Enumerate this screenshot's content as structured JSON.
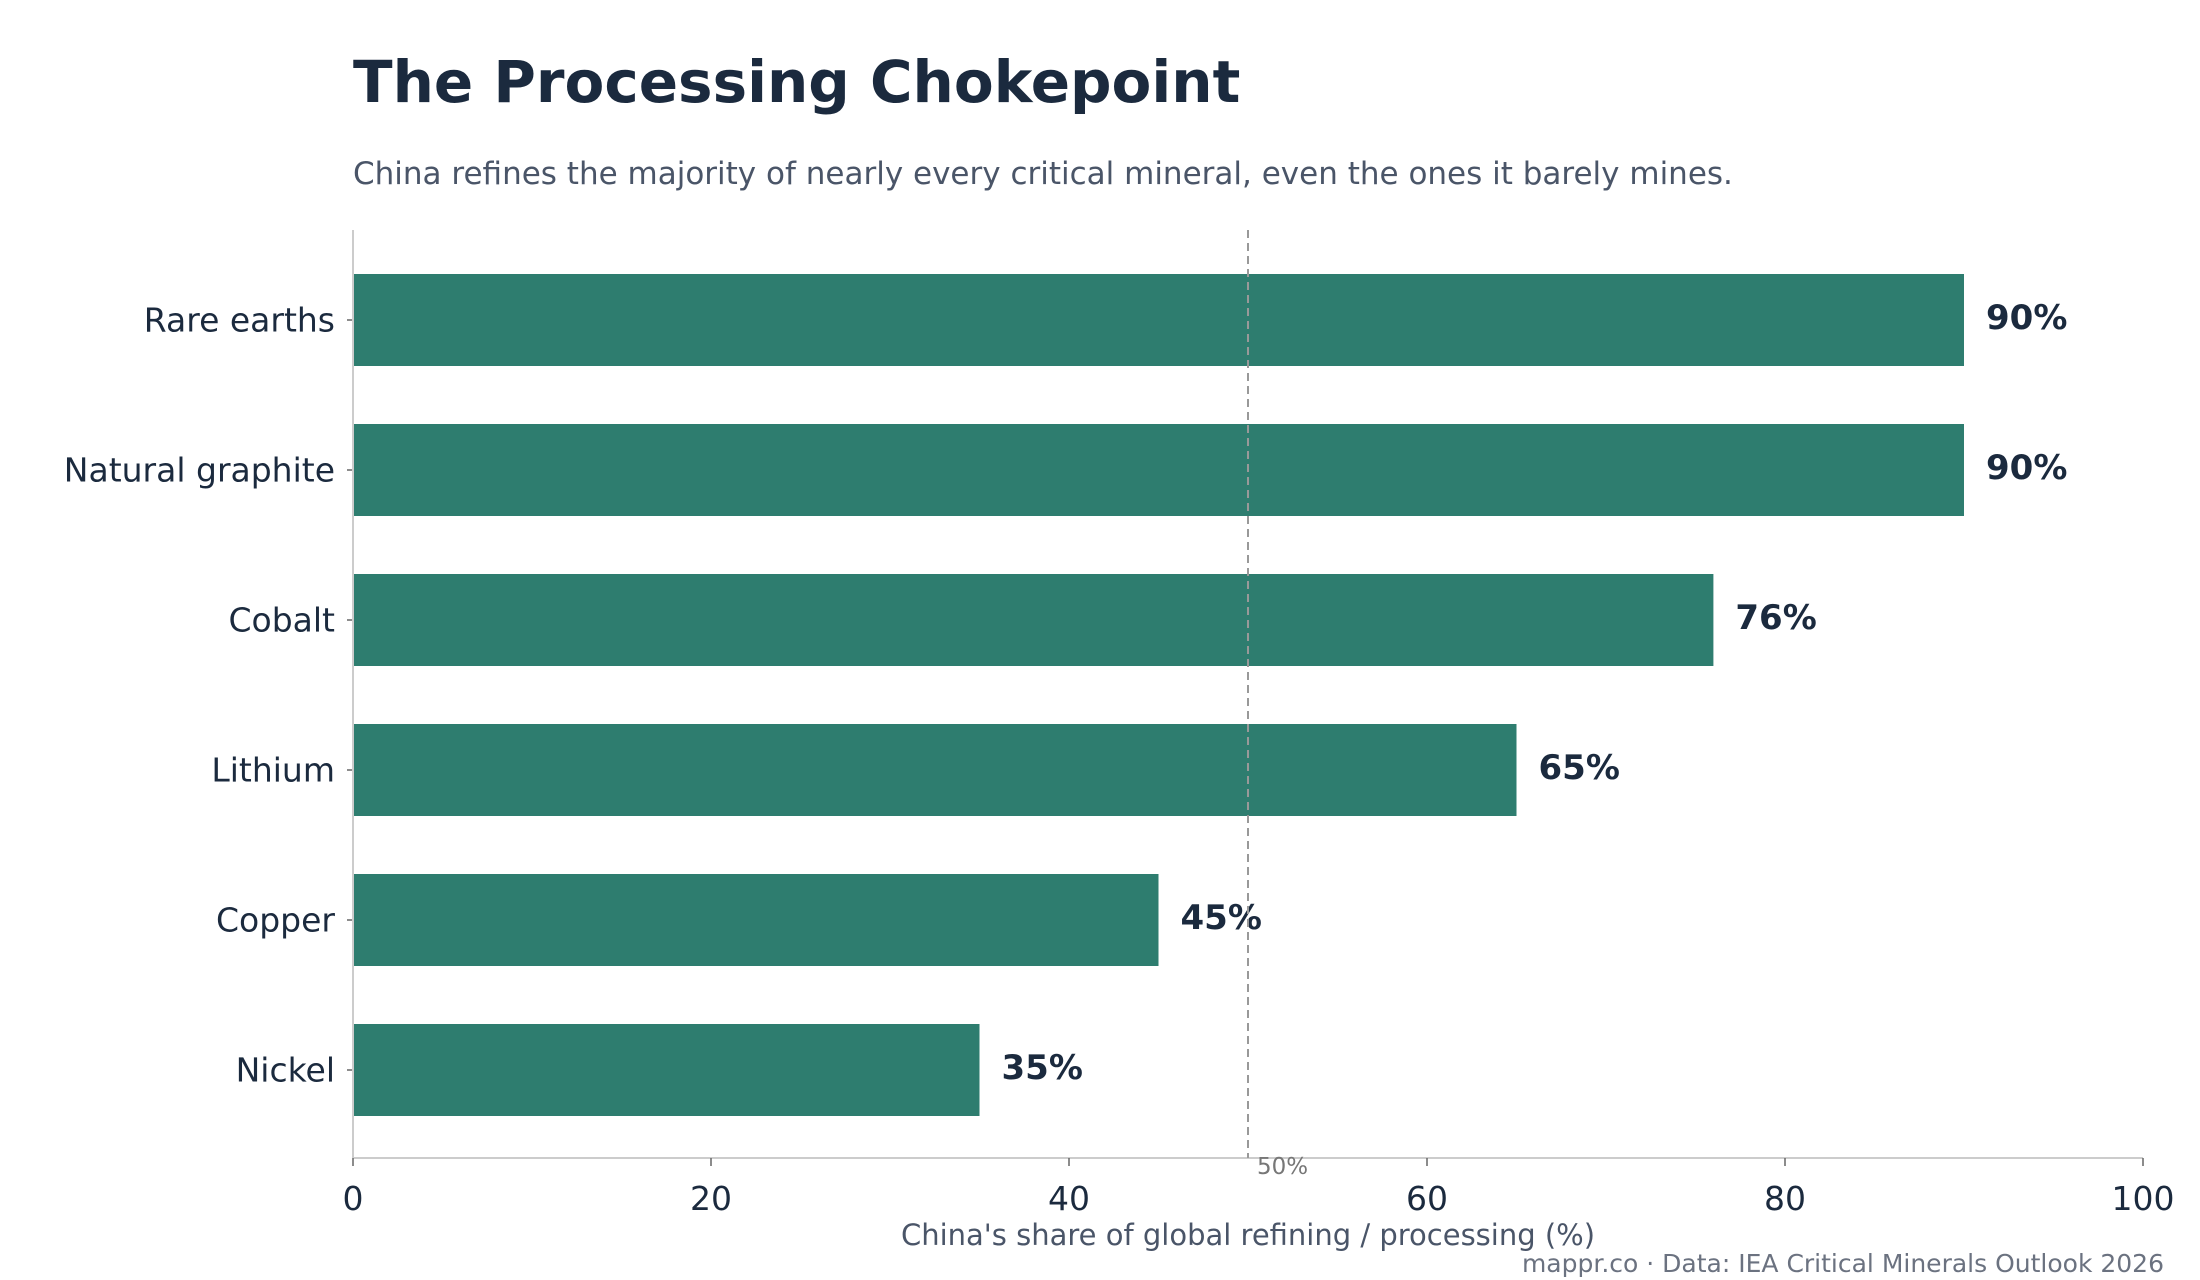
{
  "colors": {
    "bar": "#2e7d6f",
    "text": "#1b2a3e",
    "muted": "#4a5568",
    "axis": "#cccccc",
    "reference": "#999999"
  },
  "chart_data": {
    "type": "bar",
    "orientation": "horizontal",
    "title": "The Processing Chokepoint",
    "subtitle": "China refines the majority of nearly every critical mineral, even the ones it barely mines.",
    "xlabel": "China's share of global refining / processing (%)",
    "ylabel": "",
    "categories": [
      "Rare earths",
      "Natural graphite",
      "Cobalt",
      "Lithium",
      "Copper",
      "Nickel"
    ],
    "values": [
      90,
      90,
      76,
      65,
      45,
      35
    ],
    "value_labels": [
      "90%",
      "90%",
      "76%",
      "65%",
      "45%",
      "35%"
    ],
    "xlim": [
      0,
      100
    ],
    "xticks": [
      0,
      20,
      40,
      60,
      80,
      100
    ],
    "xtick_labels": [
      "0",
      "20",
      "40",
      "60",
      "80",
      "100"
    ],
    "reference_line": {
      "value": 50,
      "label": "50%",
      "style": "dashed"
    },
    "grid": false,
    "legend": "none",
    "source": "mappr.co · Data: IEA Critical Minerals Outlook 2026"
  }
}
